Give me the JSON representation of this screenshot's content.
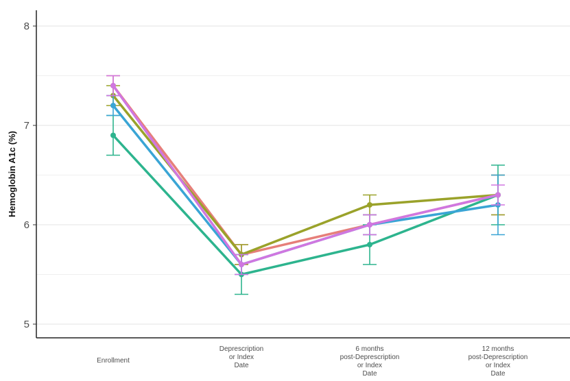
{
  "chart_data": {
    "type": "line",
    "title": "",
    "xlabel": "",
    "ylabel": "Hemoglobin A1c (%)",
    "ylim": [
      5,
      8
    ],
    "yticks": [
      "5",
      "6",
      "7",
      "8"
    ],
    "ytick_values": [
      5,
      6,
      7,
      8
    ],
    "grid": true,
    "legend": "none",
    "categories": [
      [
        "Enrollment"
      ],
      [
        "Deprescription",
        "or Index",
        "Date"
      ],
      [
        "6 months",
        "post-Deprescription",
        "or Index",
        "Date"
      ],
      [
        "12 months",
        "post-Deprescription",
        "or Index",
        "Date"
      ]
    ],
    "series": [
      {
        "color": "#e67f7a",
        "values": [
          7.4,
          5.7,
          6.0,
          6.3
        ],
        "lower": [
          7.3,
          5.6,
          5.9,
          6.1
        ],
        "upper": [
          7.5,
          5.8,
          6.1,
          6.5
        ]
      },
      {
        "color": "#9aa22a",
        "values": [
          7.3,
          5.7,
          6.2,
          6.3
        ],
        "lower": [
          7.2,
          5.6,
          6.1,
          6.1
        ],
        "upper": [
          7.4,
          5.8,
          6.3,
          6.5
        ]
      },
      {
        "color": "#2db48e",
        "values": [
          6.9,
          5.5,
          5.8,
          6.3
        ],
        "lower": [
          6.7,
          5.3,
          5.6,
          6.0
        ],
        "upper": [
          7.1,
          5.7,
          6.0,
          6.6
        ]
      },
      {
        "color": "#3aa5d5",
        "values": [
          7.2,
          5.6,
          6.0,
          6.2
        ],
        "lower": [
          7.1,
          5.5,
          5.9,
          5.9
        ],
        "upper": [
          7.3,
          5.7,
          6.1,
          6.5
        ]
      },
      {
        "color": "#d077e0",
        "values": [
          7.4,
          5.6,
          6.0,
          6.3
        ],
        "lower": [
          7.3,
          5.5,
          5.9,
          6.2
        ],
        "upper": [
          7.5,
          5.7,
          6.1,
          6.4
        ]
      }
    ]
  }
}
